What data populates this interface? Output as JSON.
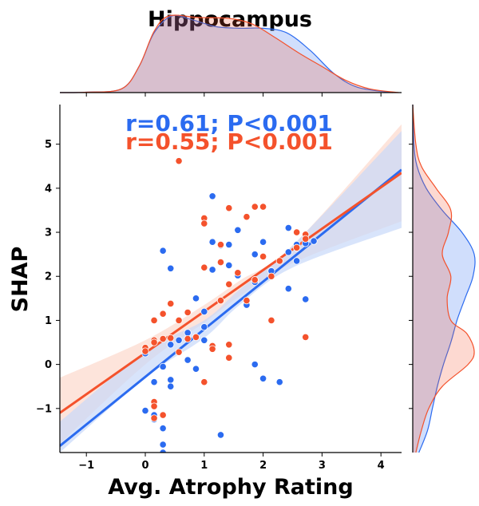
{
  "chart_data": {
    "type": "scatter",
    "title": "Hippocampus",
    "xlabel": "Avg. Atrophy Rating",
    "ylabel": "SHAP",
    "xlim": [
      -1.45,
      4.35
    ],
    "ylim": [
      -2.0,
      5.9
    ],
    "xticks": [
      -1,
      0,
      1,
      2,
      3,
      4
    ],
    "yticks": [
      -1,
      0,
      1,
      2,
      3,
      4,
      5
    ],
    "grid": false,
    "annotations": [
      {
        "text": "r=0.61; P<0.001",
        "color": "#2b6bf0"
      },
      {
        "text": "r=0.55; P<0.001",
        "color": "#f4522c"
      }
    ],
    "series": [
      {
        "color": "#2b6bf0",
        "fill": "#c7d8fa",
        "points": [
          [
            0,
            0.25
          ],
          [
            0,
            -1.05
          ],
          [
            0.15,
            -0.4
          ],
          [
            0.15,
            -1.15
          ],
          [
            0.15,
            -1.25
          ],
          [
            0.3,
            2.58
          ],
          [
            0.3,
            -0.05
          ],
          [
            0.3,
            -1.45
          ],
          [
            0.3,
            -1.82
          ],
          [
            0.3,
            -2.0
          ],
          [
            0.43,
            2.18
          ],
          [
            0.43,
            0.45
          ],
          [
            0.43,
            -0.35
          ],
          [
            0.43,
            -0.5
          ],
          [
            0.57,
            0.55
          ],
          [
            0.72,
            0.72
          ],
          [
            0.72,
            0.1
          ],
          [
            0.86,
            1.5
          ],
          [
            0.86,
            -0.1
          ],
          [
            1.0,
            0.85
          ],
          [
            1.0,
            0.55
          ],
          [
            1.0,
            1.2
          ],
          [
            1.14,
            3.82
          ],
          [
            1.14,
            2.78
          ],
          [
            1.14,
            2.15
          ],
          [
            1.28,
            2.7
          ],
          [
            1.28,
            -1.6
          ],
          [
            1.42,
            2.72
          ],
          [
            1.42,
            2.25
          ],
          [
            1.57,
            3.05
          ],
          [
            1.57,
            2.02
          ],
          [
            1.72,
            1.35
          ],
          [
            1.86,
            2.5
          ],
          [
            1.86,
            1.87
          ],
          [
            1.86,
            0.0
          ],
          [
            2.0,
            2.78
          ],
          [
            2.0,
            -0.32
          ],
          [
            2.14,
            2.12
          ],
          [
            2.28,
            -0.4
          ],
          [
            2.43,
            3.1
          ],
          [
            2.43,
            2.55
          ],
          [
            2.43,
            1.72
          ],
          [
            2.57,
            2.72
          ],
          [
            2.57,
            2.35
          ],
          [
            2.72,
            1.48
          ],
          [
            2.72,
            2.75
          ],
          [
            2.86,
            2.8
          ]
        ],
        "regression": {
          "x": [
            -1.45,
            4.35
          ],
          "y": [
            -1.85,
            4.42
          ]
        },
        "ci_lower": [
          [
            -1.45,
            -2.0
          ],
          [
            0.0,
            -0.3
          ],
          [
            1.0,
            0.6
          ],
          [
            1.6,
            1.35
          ],
          [
            2.5,
            2.2
          ],
          [
            4.35,
            3.1
          ]
        ],
        "ci_upper": [
          [
            -1.45,
            -1.3
          ],
          [
            0.0,
            0.3
          ],
          [
            1.0,
            1.0
          ],
          [
            1.6,
            1.7
          ],
          [
            2.5,
            2.7
          ],
          [
            4.35,
            5.3
          ]
        ],
        "marg_x": [
          [
            -1.45,
            0
          ],
          [
            -1.0,
            0.005
          ],
          [
            -0.4,
            0.05
          ],
          [
            -0.1,
            0.35
          ],
          [
            0.15,
            0.78
          ],
          [
            0.45,
            1.0
          ],
          [
            0.8,
            0.95
          ],
          [
            1.2,
            0.86
          ],
          [
            1.6,
            0.84
          ],
          [
            2.0,
            0.84
          ],
          [
            2.4,
            0.78
          ],
          [
            2.8,
            0.55
          ],
          [
            3.2,
            0.25
          ],
          [
            3.6,
            0.07
          ],
          [
            4.2,
            0.0
          ]
        ],
        "marg_y": [
          [
            -2.0,
            0.1
          ],
          [
            -1.5,
            0.24
          ],
          [
            -1.0,
            0.32
          ],
          [
            -0.5,
            0.4
          ],
          [
            0.0,
            0.5
          ],
          [
            0.5,
            0.62
          ],
          [
            1.0,
            0.72
          ],
          [
            1.5,
            0.85
          ],
          [
            2.0,
            0.98
          ],
          [
            2.5,
            1.0
          ],
          [
            3.0,
            0.8
          ],
          [
            3.5,
            0.48
          ],
          [
            4.0,
            0.22
          ],
          [
            4.5,
            0.07
          ],
          [
            5.0,
            0.02
          ],
          [
            5.9,
            0.0
          ]
        ]
      },
      {
        "color": "#f4522c",
        "fill": "#fcd8cc",
        "points": [
          [
            0,
            0.38
          ],
          [
            0,
            0.3
          ],
          [
            0.15,
            1.0
          ],
          [
            0.15,
            0.55
          ],
          [
            0.15,
            0.5
          ],
          [
            0.15,
            -0.85
          ],
          [
            0.15,
            -0.95
          ],
          [
            0.15,
            -1.22
          ],
          [
            0.3,
            1.15
          ],
          [
            0.3,
            0.58
          ],
          [
            0.3,
            -1.15
          ],
          [
            0.43,
            1.38
          ],
          [
            0.43,
            0.6
          ],
          [
            0.57,
            4.62
          ],
          [
            0.57,
            1.0
          ],
          [
            0.57,
            0.28
          ],
          [
            0.72,
            1.18
          ],
          [
            0.72,
            0.58
          ],
          [
            0.86,
            0.62
          ],
          [
            1.0,
            3.32
          ],
          [
            1.0,
            3.2
          ],
          [
            1.0,
            2.2
          ],
          [
            1.0,
            -0.4
          ],
          [
            1.14,
            0.42
          ],
          [
            1.14,
            0.35
          ],
          [
            1.28,
            2.72
          ],
          [
            1.28,
            2.32
          ],
          [
            1.28,
            1.45
          ],
          [
            1.42,
            3.55
          ],
          [
            1.42,
            1.82
          ],
          [
            1.42,
            0.45
          ],
          [
            1.42,
            0.15
          ],
          [
            1.57,
            2.08
          ],
          [
            1.72,
            3.35
          ],
          [
            1.72,
            1.45
          ],
          [
            1.86,
            3.58
          ],
          [
            1.86,
            1.92
          ],
          [
            2.0,
            3.58
          ],
          [
            2.0,
            2.45
          ],
          [
            2.14,
            2.0
          ],
          [
            2.14,
            1.0
          ],
          [
            2.28,
            2.35
          ],
          [
            2.57,
            3.0
          ],
          [
            2.57,
            2.65
          ],
          [
            2.72,
            2.95
          ],
          [
            2.72,
            2.85
          ],
          [
            2.72,
            0.62
          ]
        ],
        "regression": {
          "x": [
            -1.45,
            4.35
          ],
          "y": [
            -1.1,
            4.35
          ]
        },
        "ci_lower": [
          [
            -1.45,
            -1.8
          ],
          [
            0.0,
            0.0
          ],
          [
            1.0,
            0.95
          ],
          [
            1.6,
            1.55
          ],
          [
            2.5,
            2.3
          ],
          [
            4.35,
            3.25
          ]
        ],
        "ci_upper": [
          [
            -1.45,
            -0.3
          ],
          [
            0.0,
            0.55
          ],
          [
            1.0,
            1.35
          ],
          [
            1.6,
            1.9
          ],
          [
            2.5,
            2.7
          ],
          [
            4.35,
            5.45
          ]
        ],
        "marg_x": [
          [
            -1.45,
            0
          ],
          [
            -1.0,
            0.005
          ],
          [
            -0.4,
            0.05
          ],
          [
            -0.1,
            0.35
          ],
          [
            0.15,
            0.8
          ],
          [
            0.4,
            1.0
          ],
          [
            0.9,
            0.98
          ],
          [
            1.4,
            0.97
          ],
          [
            1.8,
            0.9
          ],
          [
            2.2,
            0.72
          ],
          [
            2.6,
            0.52
          ],
          [
            3.0,
            0.34
          ],
          [
            3.4,
            0.16
          ],
          [
            3.8,
            0.05
          ],
          [
            4.3,
            0.0
          ]
        ],
        "marg_y": [
          [
            -2.0,
            0.05
          ],
          [
            -1.5,
            0.14
          ],
          [
            -1.0,
            0.26
          ],
          [
            -0.5,
            0.48
          ],
          [
            0.0,
            0.9
          ],
          [
            0.3,
            1.0
          ],
          [
            0.7,
            0.88
          ],
          [
            1.0,
            0.62
          ],
          [
            1.5,
            0.56
          ],
          [
            2.0,
            0.62
          ],
          [
            2.5,
            0.48
          ],
          [
            3.0,
            0.58
          ],
          [
            3.5,
            0.62
          ],
          [
            4.0,
            0.38
          ],
          [
            4.5,
            0.14
          ],
          [
            5.0,
            0.05
          ],
          [
            5.9,
            0.0
          ]
        ]
      }
    ]
  }
}
